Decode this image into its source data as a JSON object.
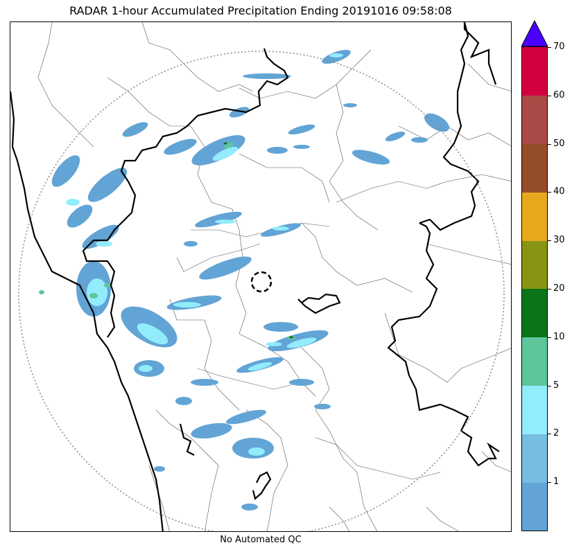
{
  "title": "RADAR 1-hour Accumulated Precipitation Ending 20191016 09:58:08",
  "footer_note": "No Automated QC",
  "colorbar": {
    "extend_color": "#4b00ff",
    "colors": [
      "#62a4d5",
      "#77bde0",
      "#92ecfc",
      "#5fc59b",
      "#0b7318",
      "#889514",
      "#e6a81c",
      "#954c28",
      "#a84a45",
      "#d3003f"
    ],
    "tick_labels": [
      "1",
      "2",
      "5",
      "10",
      "20",
      "30",
      "40",
      "50",
      "60",
      "70"
    ]
  },
  "map": {
    "range_ring_color": "#888888",
    "precip_colors": {
      "light": "#62a4d5",
      "medium": "#92ecfc",
      "heavy": "#5fc59b",
      "very_heavy": "#0b7318"
    }
  }
}
